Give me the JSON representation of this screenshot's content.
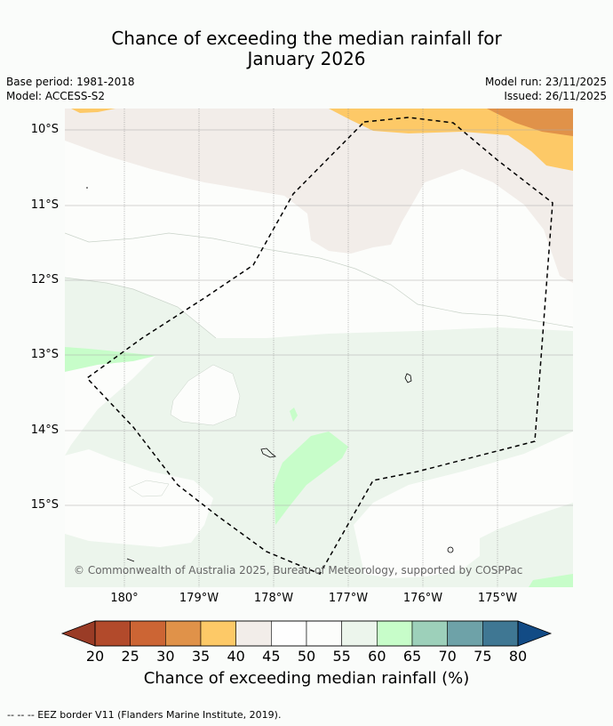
{
  "title_line1": "Chance of exceeding the median rainfall for",
  "title_line2": "January 2026",
  "base_period": "Base period: 1981-2018",
  "model": "Model: ACCESS-S2",
  "model_run": "Model run: 23/11/2025",
  "issued": "Issued: 26/11/2025",
  "lat_labels": [
    "10°S",
    "11°S",
    "12°S",
    "13°S",
    "14°S",
    "15°S"
  ],
  "lon_labels": [
    "180°",
    "179°W",
    "178°W",
    "177°W",
    "176°W",
    "175°W"
  ],
  "copyright": "© Commonwealth of Australia 2025, Bureau of Meteorology, supported by COSPPac",
  "colorbar": {
    "ticks": [
      "20",
      "25",
      "30",
      "35",
      "40",
      "45",
      "50",
      "55",
      "60",
      "65",
      "70",
      "75",
      "80"
    ],
    "colors": [
      "#b24a2b",
      "#cc6534",
      "#e09249",
      "#fdc967",
      "#f2ede9",
      "#fefefe",
      "#fcfdfb",
      "#ecf5ec",
      "#c7fdc9",
      "#9dd0ba",
      "#6ea2a8",
      "#3f7793"
    ],
    "under_color": "#9a3c26",
    "over_color": "#124b85",
    "label": "Chance of exceeding median rainfall (%)"
  },
  "footer": "--  --  -- EEZ border V11 (Flanders Marine Institute, 2019)."
}
